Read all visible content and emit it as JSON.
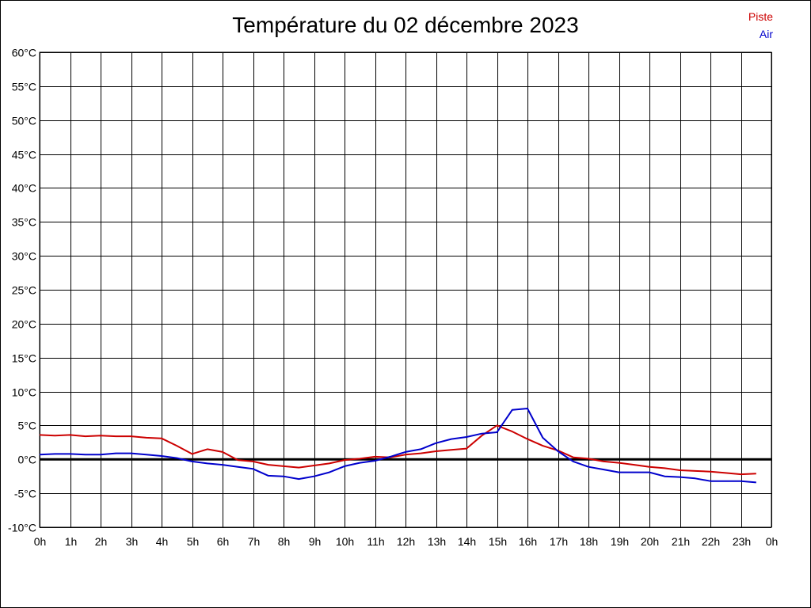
{
  "chart_data": {
    "type": "line",
    "title": "Température du 02 décembre 2023",
    "xlabel": "",
    "ylabel": "",
    "ylim": [
      -10,
      60
    ],
    "xlim": [
      0,
      24
    ],
    "grid": true,
    "legend_position": "top-right",
    "x_ticks": [
      "0h",
      "1h",
      "2h",
      "3h",
      "4h",
      "5h",
      "6h",
      "7h",
      "8h",
      "9h",
      "10h",
      "11h",
      "12h",
      "13h",
      "14h",
      "15h",
      "16h",
      "17h",
      "18h",
      "19h",
      "20h",
      "21h",
      "22h",
      "23h",
      "0h"
    ],
    "y_ticks": [
      "-10°C",
      "-5°C",
      "0°C",
      "5°C",
      "10°C",
      "15°C",
      "20°C",
      "25°C",
      "30°C",
      "35°C",
      "40°C",
      "45°C",
      "50°C",
      "55°C",
      "60°C"
    ],
    "x": [
      0,
      0.5,
      1,
      1.5,
      2,
      2.5,
      3,
      3.5,
      4,
      4.5,
      5,
      5.5,
      6,
      6.5,
      7,
      7.5,
      8,
      8.5,
      9,
      9.5,
      10,
      10.5,
      11,
      11.5,
      12,
      12.5,
      13,
      13.5,
      14,
      14.5,
      15,
      15.5,
      16,
      16.5,
      17,
      17.5,
      18,
      18.5,
      19,
      19.5,
      20,
      20.5,
      21,
      21.5,
      22,
      22.5,
      23,
      23.5
    ],
    "series": [
      {
        "name": "Piste",
        "color": "#cc0000",
        "values": [
          3.6,
          3.5,
          3.6,
          3.4,
          3.5,
          3.4,
          3.4,
          3.2,
          3.1,
          2.0,
          0.8,
          1.5,
          1.1,
          -0.1,
          -0.3,
          -0.8,
          -1.0,
          -1.2,
          -0.9,
          -0.6,
          -0.1,
          0.1,
          0.4,
          0.3,
          0.7,
          0.9,
          1.2,
          1.4,
          1.6,
          3.5,
          5.0,
          4.1,
          3.0,
          2.0,
          1.3,
          0.3,
          0.1,
          -0.3,
          -0.5,
          -0.8,
          -1.1,
          -1.3,
          -1.6,
          -1.7,
          -1.8,
          -2.0,
          -2.2,
          -2.1
        ]
      },
      {
        "name": "Air",
        "color": "#0000cc",
        "values": [
          0.7,
          0.8,
          0.8,
          0.7,
          0.7,
          0.9,
          0.9,
          0.7,
          0.5,
          0.2,
          -0.3,
          -0.6,
          -0.8,
          -1.1,
          -1.4,
          -2.4,
          -2.5,
          -2.9,
          -2.5,
          -1.9,
          -1.0,
          -0.5,
          -0.2,
          0.4,
          1.1,
          1.5,
          2.4,
          3.0,
          3.3,
          3.8,
          4.0,
          7.3,
          7.5,
          3.2,
          1.2,
          -0.3,
          -1.1,
          -1.5,
          -1.9,
          -1.9,
          -1.9,
          -2.5,
          -2.6,
          -2.8,
          -3.2,
          -3.2,
          -3.2,
          -3.4
        ]
      }
    ]
  }
}
